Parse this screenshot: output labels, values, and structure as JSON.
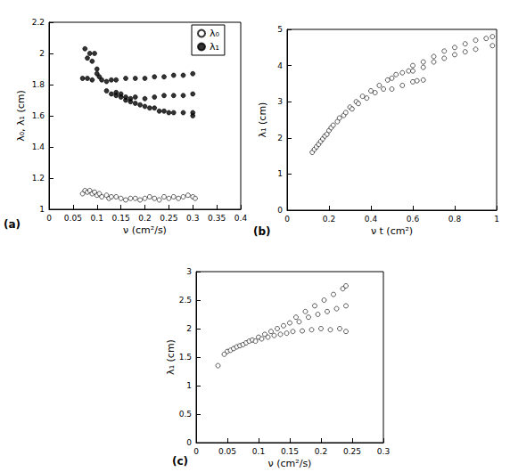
{
  "chart_data": [
    {
      "type": "scatter",
      "title": "(a)",
      "x_label": "ν (cm²/s)",
      "y_label": "λ₀, λ₁ (cm)",
      "xlim": [
        0,
        0.4
      ],
      "xticks": [
        0,
        0.05,
        0.1,
        0.15,
        0.2,
        0.25,
        0.3,
        0.35,
        0.4
      ],
      "ylim": [
        1,
        2.2
      ],
      "yticks": [
        1,
        1.2,
        1.4,
        1.6,
        1.8,
        2,
        2.2
      ],
      "grid": false,
      "legend": "upper right",
      "series": [
        {
          "name": "λ₀",
          "color": "#000000",
          "marker": "open_circle",
          "values": [
            [
              0.07,
              1.1
            ],
            [
              0.075,
              1.12
            ],
            [
              0.08,
              1.11
            ],
            [
              0.085,
              1.12
            ],
            [
              0.09,
              1.1
            ],
            [
              0.095,
              1.11
            ],
            [
              0.1,
              1.09
            ],
            [
              0.105,
              1.1
            ],
            [
              0.11,
              1.08
            ],
            [
              0.12,
              1.09
            ],
            [
              0.125,
              1.07
            ],
            [
              0.13,
              1.08
            ],
            [
              0.14,
              1.08
            ],
            [
              0.15,
              1.07
            ],
            [
              0.16,
              1.06
            ],
            [
              0.17,
              1.07
            ],
            [
              0.18,
              1.07
            ],
            [
              0.19,
              1.06
            ],
            [
              0.2,
              1.07
            ],
            [
              0.21,
              1.08
            ],
            [
              0.22,
              1.07
            ],
            [
              0.23,
              1.06
            ],
            [
              0.24,
              1.08
            ],
            [
              0.25,
              1.07
            ],
            [
              0.26,
              1.08
            ],
            [
              0.27,
              1.07
            ],
            [
              0.28,
              1.08
            ],
            [
              0.29,
              1.09
            ],
            [
              0.3,
              1.08
            ],
            [
              0.305,
              1.07
            ]
          ]
        },
        {
          "name": "λ₁",
          "color": "#000000",
          "marker": "filled_circle",
          "values": [
            [
              0.07,
              1.84
            ],
            [
              0.075,
              2.03
            ],
            [
              0.08,
              1.97
            ],
            [
              0.08,
              1.84
            ],
            [
              0.085,
              2.0
            ],
            [
              0.09,
              1.95
            ],
            [
              0.09,
              1.83
            ],
            [
              0.095,
              2.0
            ],
            [
              0.1,
              1.9
            ],
            [
              0.1,
              1.87
            ],
            [
              0.105,
              1.85
            ],
            [
              0.11,
              1.83
            ],
            [
              0.12,
              1.82
            ],
            [
              0.13,
              1.83
            ],
            [
              0.14,
              1.83
            ],
            [
              0.16,
              1.84
            ],
            [
              0.18,
              1.84
            ],
            [
              0.2,
              1.84
            ],
            [
              0.22,
              1.85
            ],
            [
              0.24,
              1.85
            ],
            [
              0.26,
              1.86
            ],
            [
              0.28,
              1.86
            ],
            [
              0.3,
              1.87
            ],
            [
              0.12,
              1.76
            ],
            [
              0.13,
              1.74
            ],
            [
              0.14,
              1.73
            ],
            [
              0.15,
              1.72
            ],
            [
              0.16,
              1.72
            ],
            [
              0.17,
              1.71
            ],
            [
              0.18,
              1.72
            ],
            [
              0.2,
              1.71
            ],
            [
              0.22,
              1.72
            ],
            [
              0.24,
              1.73
            ],
            [
              0.26,
              1.73
            ],
            [
              0.28,
              1.73
            ],
            [
              0.3,
              1.74
            ],
            [
              0.14,
              1.75
            ],
            [
              0.15,
              1.74
            ],
            [
              0.16,
              1.7
            ],
            [
              0.17,
              1.69
            ],
            [
              0.18,
              1.68
            ],
            [
              0.19,
              1.67
            ],
            [
              0.2,
              1.66
            ],
            [
              0.21,
              1.65
            ],
            [
              0.22,
              1.65
            ],
            [
              0.23,
              1.63
            ],
            [
              0.24,
              1.63
            ],
            [
              0.25,
              1.62
            ],
            [
              0.26,
              1.62
            ],
            [
              0.28,
              1.62
            ],
            [
              0.3,
              1.6
            ],
            [
              0.3,
              1.62
            ]
          ]
        }
      ]
    },
    {
      "type": "scatter",
      "title": "(b)",
      "x_label": "ν t (cm²)",
      "y_label": "λ₁ (cm)",
      "xlim": [
        0,
        1
      ],
      "xticks": [
        0,
        0.2,
        0.4,
        0.6,
        0.8,
        1
      ],
      "ylim": [
        0,
        5
      ],
      "yticks": [
        0,
        1,
        2,
        3,
        4,
        5
      ],
      "grid": false,
      "series": [
        {
          "color": "#000000",
          "marker": "open_circle",
          "values": [
            [
              0.12,
              1.6
            ],
            [
              0.13,
              1.68
            ],
            [
              0.14,
              1.75
            ],
            [
              0.15,
              1.82
            ],
            [
              0.16,
              1.9
            ],
            [
              0.17,
              1.97
            ],
            [
              0.18,
              2.05
            ],
            [
              0.19,
              2.1
            ],
            [
              0.2,
              2.2
            ],
            [
              0.21,
              2.28
            ],
            [
              0.22,
              2.35
            ],
            [
              0.24,
              2.45
            ],
            [
              0.25,
              2.55
            ],
            [
              0.27,
              2.62
            ],
            [
              0.28,
              2.7
            ],
            [
              0.3,
              2.85
            ],
            [
              0.31,
              2.8
            ],
            [
              0.33,
              3.0
            ],
            [
              0.34,
              2.95
            ],
            [
              0.36,
              3.15
            ],
            [
              0.38,
              3.1
            ],
            [
              0.4,
              3.3
            ],
            [
              0.42,
              3.25
            ],
            [
              0.44,
              3.45
            ],
            [
              0.46,
              3.35
            ],
            [
              0.48,
              3.6
            ],
            [
              0.5,
              3.35
            ],
            [
              0.5,
              3.65
            ],
            [
              0.52,
              3.75
            ],
            [
              0.55,
              3.45
            ],
            [
              0.55,
              3.8
            ],
            [
              0.58,
              3.85
            ],
            [
              0.6,
              3.55
            ],
            [
              0.6,
              3.85
            ],
            [
              0.6,
              4.0
            ],
            [
              0.62,
              3.58
            ],
            [
              0.65,
              3.6
            ],
            [
              0.65,
              3.95
            ],
            [
              0.65,
              4.1
            ],
            [
              0.7,
              4.1
            ],
            [
              0.7,
              4.25
            ],
            [
              0.75,
              4.2
            ],
            [
              0.75,
              4.4
            ],
            [
              0.8,
              4.3
            ],
            [
              0.8,
              4.5
            ],
            [
              0.85,
              4.38
            ],
            [
              0.85,
              4.6
            ],
            [
              0.9,
              4.45
            ],
            [
              0.9,
              4.7
            ],
            [
              0.95,
              4.75
            ],
            [
              0.98,
              4.8
            ],
            [
              0.98,
              4.55
            ]
          ]
        }
      ]
    },
    {
      "type": "scatter",
      "title": "(c)",
      "x_label": "ν (cm²/s)",
      "y_label": "λ₁ (cm)",
      "xlim": [
        0,
        0.3
      ],
      "xticks": [
        0,
        0.05,
        0.1,
        0.15,
        0.2,
        0.25,
        0.3
      ],
      "ylim": [
        0,
        3
      ],
      "yticks": [
        0,
        0.5,
        1,
        1.5,
        2,
        2.5,
        3
      ],
      "grid": false,
      "series": [
        {
          "color": "#000000",
          "marker": "open_circle",
          "values": [
            [
              0.035,
              1.35
            ],
            [
              0.045,
              1.55
            ],
            [
              0.05,
              1.6
            ],
            [
              0.055,
              1.62
            ],
            [
              0.06,
              1.65
            ],
            [
              0.065,
              1.68
            ],
            [
              0.07,
              1.7
            ],
            [
              0.075,
              1.72
            ],
            [
              0.08,
              1.75
            ],
            [
              0.085,
              1.78
            ],
            [
              0.09,
              1.8
            ],
            [
              0.095,
              1.78
            ],
            [
              0.1,
              1.85
            ],
            [
              0.105,
              1.82
            ],
            [
              0.11,
              1.9
            ],
            [
              0.115,
              1.85
            ],
            [
              0.12,
              1.95
            ],
            [
              0.125,
              1.88
            ],
            [
              0.13,
              2.0
            ],
            [
              0.135,
              1.9
            ],
            [
              0.14,
              2.05
            ],
            [
              0.145,
              1.92
            ],
            [
              0.15,
              2.1
            ],
            [
              0.155,
              1.95
            ],
            [
              0.16,
              2.2
            ],
            [
              0.165,
              2.12
            ],
            [
              0.17,
              1.96
            ],
            [
              0.175,
              2.3
            ],
            [
              0.18,
              2.2
            ],
            [
              0.185,
              1.98
            ],
            [
              0.19,
              2.4
            ],
            [
              0.195,
              2.25
            ],
            [
              0.2,
              2.0
            ],
            [
              0.205,
              2.5
            ],
            [
              0.21,
              2.3
            ],
            [
              0.215,
              1.98
            ],
            [
              0.22,
              2.6
            ],
            [
              0.225,
              2.35
            ],
            [
              0.23,
              2.0
            ],
            [
              0.235,
              2.7
            ],
            [
              0.24,
              2.4
            ],
            [
              0.24,
              2.75
            ],
            [
              0.24,
              1.95
            ]
          ]
        }
      ]
    }
  ]
}
